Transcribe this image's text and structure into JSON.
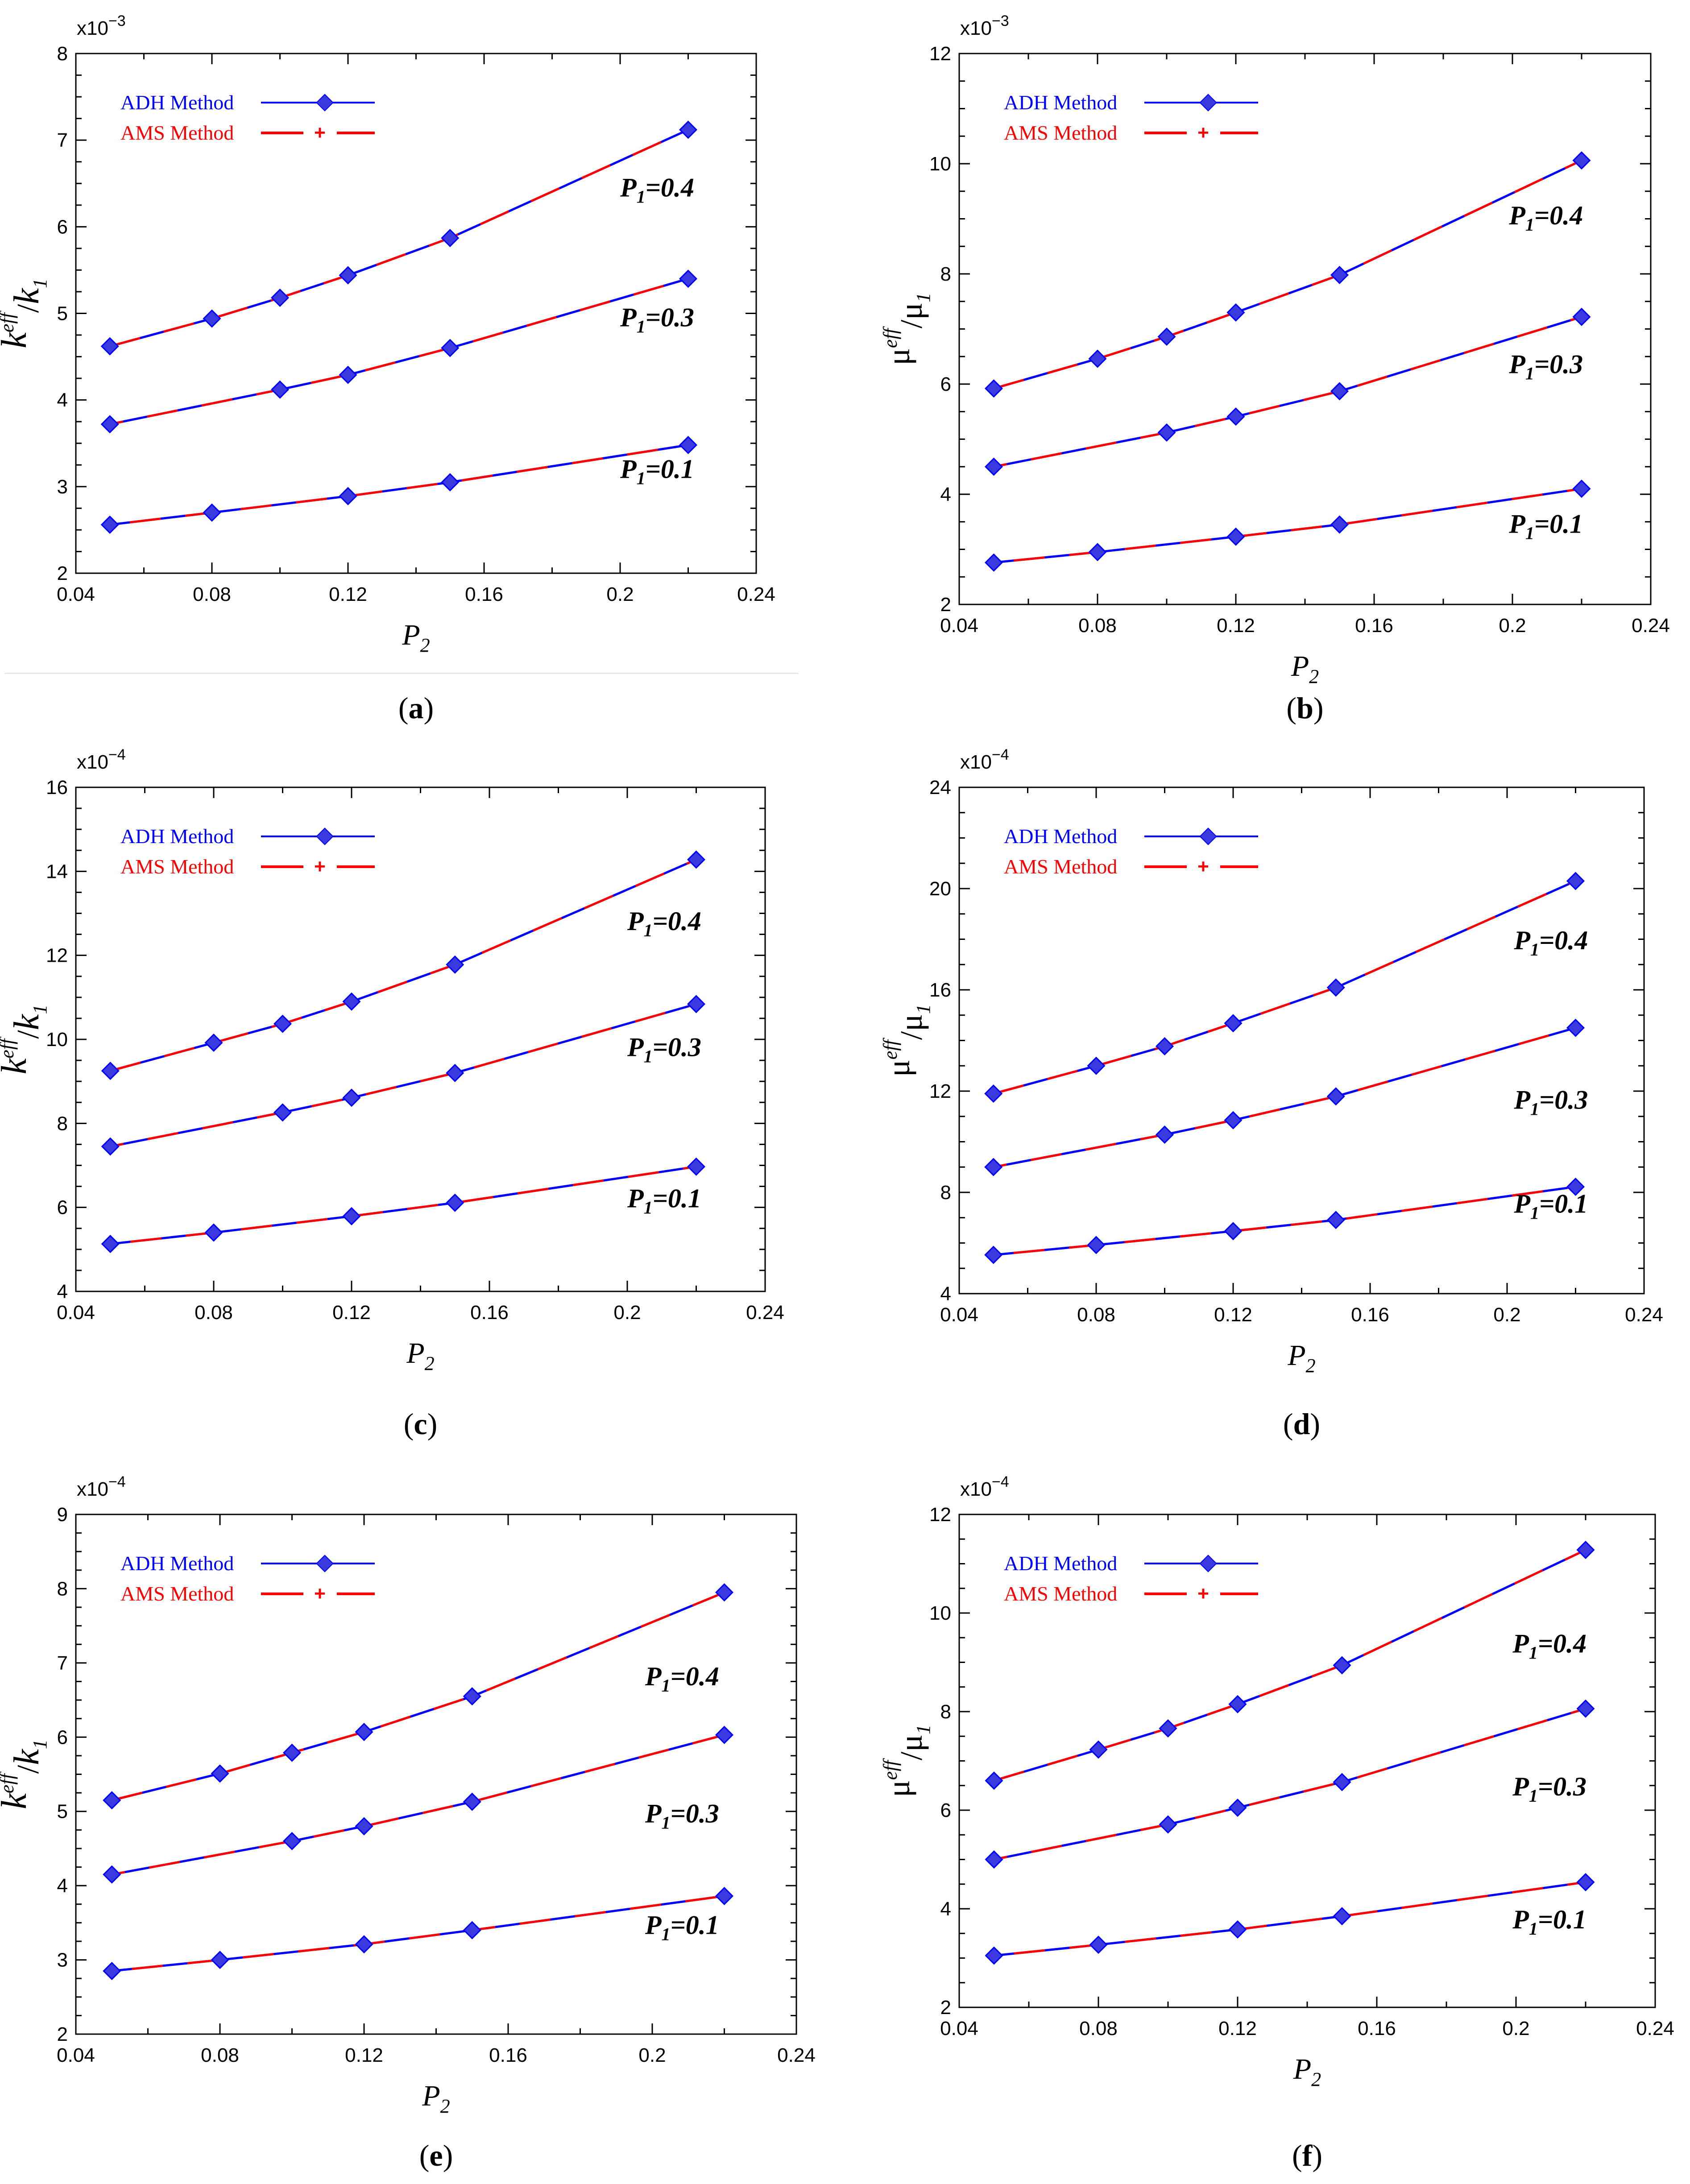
{
  "colors": {
    "adh": "#0000ff",
    "ams": "#ff0000",
    "marker": "#3a3adf",
    "axis": "#000000"
  },
  "legend": {
    "adh": "ADH Method",
    "ams": "AMS Method"
  },
  "xlabel": {
    "main": "P",
    "sub": "2"
  },
  "chart_data": [
    {
      "panel": "a",
      "caption": "(a)",
      "type": "line",
      "multiplier": {
        "base": "x10",
        "exp": "−3"
      },
      "ylabel": {
        "kind": "k"
      },
      "xlim": [
        0.04,
        0.24
      ],
      "ylim": [
        2,
        8
      ],
      "xticks": [
        "0.04",
        "0.08",
        "0.12",
        "0.16",
        "0.2",
        "0.24"
      ],
      "yticks": [
        "2",
        "3",
        "4",
        "5",
        "6",
        "7",
        "8"
      ],
      "x": [
        0.05,
        0.08,
        0.1,
        0.12,
        0.15,
        0.22
      ],
      "series": [
        {
          "label": "P1=0.4",
          "label_x": 0.2,
          "label_y": 6.35,
          "values": [
            4.62,
            4.94,
            5.18,
            5.44,
            5.87,
            7.12
          ]
        },
        {
          "label": "P1=0.3",
          "label_x": 0.2,
          "label_y": 4.85,
          "values": [
            3.72,
            null,
            4.12,
            4.29,
            4.6,
            5.4
          ]
        },
        {
          "label": "P1=0.1",
          "label_x": 0.2,
          "label_y": 3.1,
          "values": [
            2.56,
            2.7,
            null,
            2.89,
            3.05,
            3.48
          ]
        }
      ]
    },
    {
      "panel": "b",
      "caption": "(b)",
      "type": "line",
      "multiplier": {
        "base": "x10",
        "exp": "−3"
      },
      "ylabel": {
        "kind": "mu"
      },
      "xlim": [
        0.04,
        0.24
      ],
      "ylim": [
        2,
        12
      ],
      "xticks": [
        "0.04",
        "0.08",
        "0.12",
        "0.16",
        "0.2",
        "0.24"
      ],
      "yticks": [
        "2",
        "4",
        "6",
        "8",
        "10",
        "12"
      ],
      "x": [
        0.05,
        0.08,
        0.1,
        0.12,
        0.15,
        0.22
      ],
      "series": [
        {
          "label": "P1=0.4",
          "label_x": 0.199,
          "label_y": 8.9,
          "values": [
            5.92,
            6.46,
            6.86,
            7.3,
            7.98,
            10.06
          ]
        },
        {
          "label": "P1=0.3",
          "label_x": 0.199,
          "label_y": 6.2,
          "values": [
            4.5,
            null,
            5.12,
            5.41,
            5.87,
            7.22
          ]
        },
        {
          "label": "P1=0.1",
          "label_x": 0.199,
          "label_y": 3.3,
          "values": [
            2.76,
            2.95,
            null,
            3.23,
            3.45,
            4.1
          ]
        }
      ]
    },
    {
      "panel": "c",
      "caption": "(c)",
      "type": "line",
      "multiplier": {
        "base": "x10",
        "exp": "−4"
      },
      "ylabel": {
        "kind": "k"
      },
      "xlim": [
        0.04,
        0.24
      ],
      "ylim": [
        4,
        16
      ],
      "xticks": [
        "0.04",
        "0.08",
        "0.12",
        "0.16",
        "0.2",
        "0.24"
      ],
      "yticks": [
        "4",
        "6",
        "8",
        "10",
        "12",
        "14",
        "16"
      ],
      "x": [
        0.05,
        0.08,
        0.1,
        0.12,
        0.15,
        0.22
      ],
      "series": [
        {
          "label": "P1=0.4",
          "label_x": 0.2,
          "label_y": 12.6,
          "values": [
            9.25,
            9.92,
            10.37,
            10.9,
            11.78,
            14.28
          ]
        },
        {
          "label": "P1=0.3",
          "label_x": 0.2,
          "label_y": 9.6,
          "values": [
            7.45,
            null,
            8.26,
            8.61,
            9.2,
            10.84
          ]
        },
        {
          "label": "P1=0.1",
          "label_x": 0.2,
          "label_y": 6.0,
          "values": [
            5.13,
            5.4,
            null,
            5.79,
            6.11,
            6.97
          ]
        }
      ]
    },
    {
      "panel": "d",
      "caption": "(d)",
      "type": "line",
      "multiplier": {
        "base": "x10",
        "exp": "−4"
      },
      "ylabel": {
        "kind": "mu"
      },
      "xlim": [
        0.04,
        0.24
      ],
      "ylim": [
        4,
        24
      ],
      "xticks": [
        "0.04",
        "0.08",
        "0.12",
        "0.16",
        "0.2",
        "0.24"
      ],
      "yticks": [
        "4",
        "8",
        "12",
        "16",
        "20",
        "24"
      ],
      "x": [
        0.05,
        0.08,
        0.1,
        0.12,
        0.15,
        0.22
      ],
      "series": [
        {
          "label": "P1=0.4",
          "label_x": 0.202,
          "label_y": 17.6,
          "values": [
            11.9,
            13.0,
            13.77,
            14.68,
            16.09,
            20.3
          ]
        },
        {
          "label": "P1=0.3",
          "label_x": 0.202,
          "label_y": 11.3,
          "values": [
            9.0,
            null,
            10.28,
            10.85,
            11.79,
            14.5
          ]
        },
        {
          "label": "P1=0.1",
          "label_x": 0.202,
          "label_y": 7.2,
          "values": [
            5.53,
            5.92,
            null,
            6.47,
            6.91,
            8.22
          ]
        }
      ]
    },
    {
      "panel": "e",
      "caption": "(e)",
      "type": "line",
      "multiplier": {
        "base": "x10",
        "exp": "−4"
      },
      "ylabel": {
        "kind": "k"
      },
      "xlim": [
        0.04,
        0.24
      ],
      "ylim": [
        2,
        9
      ],
      "xticks": [
        "0.04",
        "0.08",
        "0.12",
        "0.16",
        "0.2",
        "0.24"
      ],
      "yticks": [
        "2",
        "3",
        "4",
        "5",
        "6",
        "7",
        "8",
        "9"
      ],
      "x": [
        0.05,
        0.08,
        0.1,
        0.12,
        0.15,
        0.22
      ],
      "series": [
        {
          "label": "P1=0.4",
          "label_x": 0.198,
          "label_y": 6.7,
          "values": [
            5.15,
            5.51,
            5.79,
            6.07,
            6.55,
            7.95
          ]
        },
        {
          "label": "P1=0.3",
          "label_x": 0.198,
          "label_y": 4.85,
          "values": [
            4.15,
            null,
            4.6,
            4.8,
            5.13,
            6.03
          ]
        },
        {
          "label": "P1=0.1",
          "label_x": 0.198,
          "label_y": 3.35,
          "values": [
            2.85,
            3.0,
            null,
            3.21,
            3.4,
            3.86
          ]
        }
      ]
    },
    {
      "panel": "f",
      "caption": "(f)",
      "type": "line",
      "multiplier": {
        "base": "x10",
        "exp": "−4"
      },
      "ylabel": {
        "kind": "mu"
      },
      "xlim": [
        0.04,
        0.24
      ],
      "ylim": [
        2,
        12
      ],
      "xticks": [
        "0.04",
        "0.08",
        "0.12",
        "0.16",
        "0.2",
        "0.24"
      ],
      "yticks": [
        "2",
        "4",
        "6",
        "8",
        "10",
        "12"
      ],
      "x": [
        0.05,
        0.08,
        0.1,
        0.12,
        0.15,
        0.22
      ],
      "series": [
        {
          "label": "P1=0.4",
          "label_x": 0.199,
          "label_y": 9.2,
          "values": [
            6.6,
            7.23,
            7.66,
            8.15,
            8.94,
            11.28
          ]
        },
        {
          "label": "P1=0.3",
          "label_x": 0.199,
          "label_y": 6.3,
          "values": [
            5.0,
            null,
            5.71,
            6.05,
            6.57,
            8.06
          ]
        },
        {
          "label": "P1=0.1",
          "label_x": 0.199,
          "label_y": 3.6,
          "values": [
            3.05,
            3.27,
            null,
            3.58,
            3.85,
            4.54
          ]
        }
      ]
    }
  ]
}
